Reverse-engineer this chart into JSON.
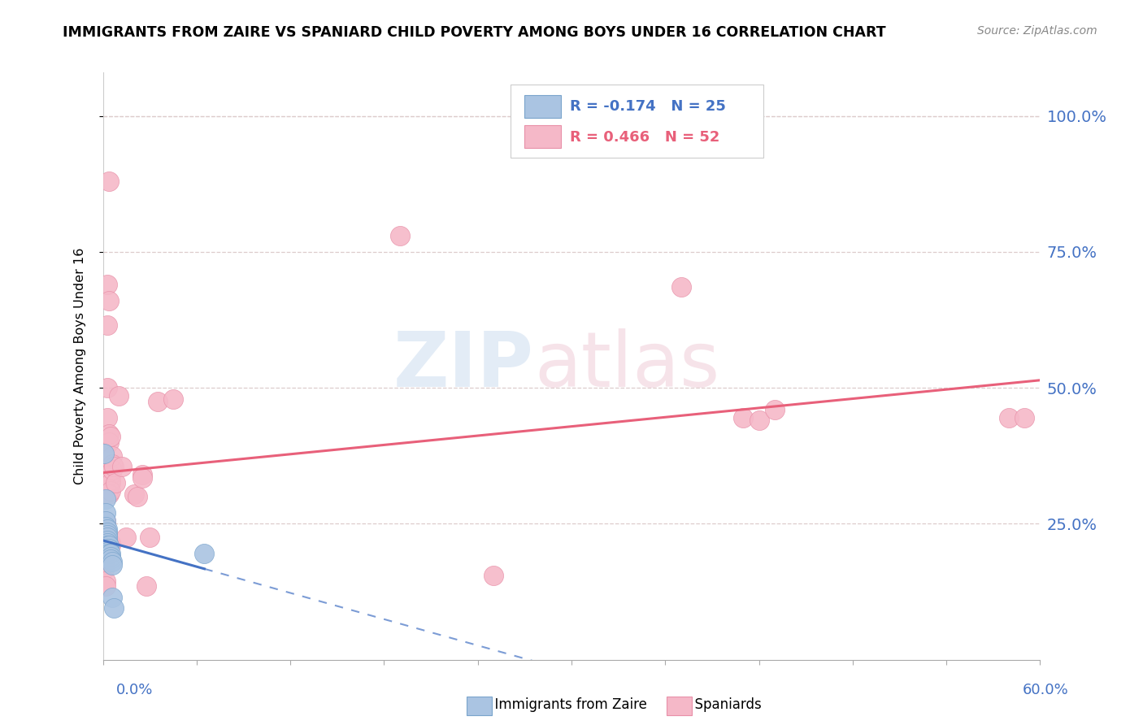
{
  "title": "IMMIGRANTS FROM ZAIRE VS SPANIARD CHILD POVERTY AMONG BOYS UNDER 16 CORRELATION CHART",
  "source": "Source: ZipAtlas.com",
  "ylabel": "Child Poverty Among Boys Under 16",
  "ytick_labels": [
    "100.0%",
    "75.0%",
    "50.0%",
    "25.0%"
  ],
  "ytick_values": [
    1.0,
    0.75,
    0.5,
    0.25
  ],
  "xlim": [
    0.0,
    0.6
  ],
  "ylim": [
    0.0,
    1.08
  ],
  "color_zaire": "#aac4e2",
  "color_spaniard": "#f5b8c8",
  "color_zaire_line": "#4472c4",
  "color_spaniard_line": "#e8607a",
  "zaire_r": -0.174,
  "spaniard_r": 0.466,
  "zaire_n": 25,
  "spaniard_n": 52,
  "zaire_points": [
    [
      0.001,
      0.38
    ],
    [
      0.002,
      0.295
    ],
    [
      0.002,
      0.27
    ],
    [
      0.002,
      0.255
    ],
    [
      0.002,
      0.245
    ],
    [
      0.003,
      0.24
    ],
    [
      0.003,
      0.235
    ],
    [
      0.003,
      0.23
    ],
    [
      0.003,
      0.225
    ],
    [
      0.003,
      0.22
    ],
    [
      0.003,
      0.215
    ],
    [
      0.003,
      0.21
    ],
    [
      0.003,
      0.205
    ],
    [
      0.004,
      0.21
    ],
    [
      0.004,
      0.205
    ],
    [
      0.004,
      0.2
    ],
    [
      0.004,
      0.195
    ],
    [
      0.005,
      0.195
    ],
    [
      0.005,
      0.19
    ],
    [
      0.005,
      0.185
    ],
    [
      0.006,
      0.18
    ],
    [
      0.006,
      0.175
    ],
    [
      0.006,
      0.115
    ],
    [
      0.007,
      0.095
    ],
    [
      0.065,
      0.195
    ]
  ],
  "spaniard_points": [
    [
      0.001,
      0.185
    ],
    [
      0.001,
      0.175
    ],
    [
      0.001,
      0.17
    ],
    [
      0.001,
      0.165
    ],
    [
      0.002,
      0.255
    ],
    [
      0.002,
      0.245
    ],
    [
      0.002,
      0.24
    ],
    [
      0.002,
      0.235
    ],
    [
      0.002,
      0.145
    ],
    [
      0.002,
      0.135
    ],
    [
      0.003,
      0.69
    ],
    [
      0.003,
      0.615
    ],
    [
      0.003,
      0.5
    ],
    [
      0.003,
      0.445
    ],
    [
      0.004,
      0.88
    ],
    [
      0.004,
      0.66
    ],
    [
      0.004,
      0.415
    ],
    [
      0.004,
      0.4
    ],
    [
      0.004,
      0.325
    ],
    [
      0.004,
      0.315
    ],
    [
      0.004,
      0.305
    ],
    [
      0.005,
      0.41
    ],
    [
      0.005,
      0.34
    ],
    [
      0.005,
      0.33
    ],
    [
      0.005,
      0.325
    ],
    [
      0.005,
      0.31
    ],
    [
      0.005,
      0.215
    ],
    [
      0.005,
      0.21
    ],
    [
      0.006,
      0.375
    ],
    [
      0.006,
      0.36
    ],
    [
      0.006,
      0.35
    ],
    [
      0.007,
      0.355
    ],
    [
      0.008,
      0.325
    ],
    [
      0.01,
      0.485
    ],
    [
      0.012,
      0.355
    ],
    [
      0.015,
      0.225
    ],
    [
      0.02,
      0.305
    ],
    [
      0.022,
      0.3
    ],
    [
      0.025,
      0.34
    ],
    [
      0.025,
      0.335
    ],
    [
      0.028,
      0.135
    ],
    [
      0.03,
      0.225
    ],
    [
      0.035,
      0.475
    ],
    [
      0.045,
      0.48
    ],
    [
      0.19,
      0.78
    ],
    [
      0.25,
      0.155
    ],
    [
      0.37,
      0.685
    ],
    [
      0.41,
      0.445
    ],
    [
      0.42,
      0.44
    ],
    [
      0.43,
      0.46
    ],
    [
      0.58,
      0.445
    ],
    [
      0.59,
      0.445
    ]
  ]
}
